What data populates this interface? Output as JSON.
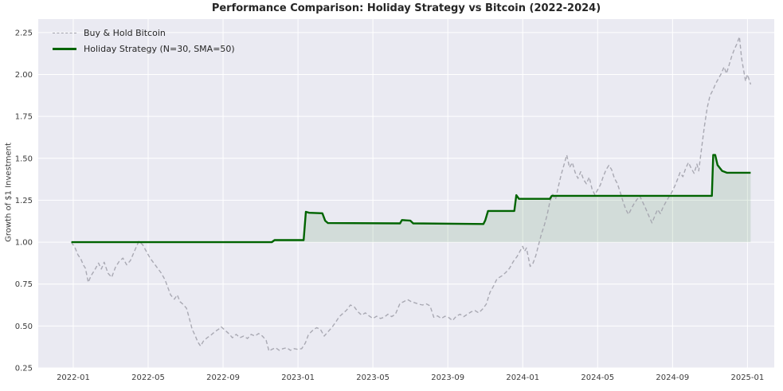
{
  "title": "Performance Comparison: Holiday Strategy vs Bitcoin (2022-2024)",
  "ylabel": "Growth of $1 Investment",
  "legend": {
    "items": [
      {
        "label": "Buy & Hold Bitcoin",
        "style": "dashed",
        "color": "#a2a2ac"
      },
      {
        "label": "Holiday Strategy (N=30, SMA=50)",
        "style": "solid",
        "color": "#006400"
      }
    ]
  },
  "chart_data": {
    "type": "line",
    "title": "Performance Comparison: Holiday Strategy vs Bitcoin (2022-2024)",
    "xlabel": "",
    "ylabel": "Growth of $1 Investment",
    "x_unit": "months since 2022-01",
    "xlim": [
      -1.87,
      37.43
    ],
    "ylim": [
      0.25,
      2.33
    ],
    "grid": true,
    "legend_position": "upper left",
    "colors": {
      "figure_bg": "#ffffff",
      "plot_bg": "#eaeaf2",
      "grid": "#ffffff"
    },
    "xticks": [
      {
        "x": 0,
        "label": "2022-01"
      },
      {
        "x": 4,
        "label": "2022-05"
      },
      {
        "x": 8,
        "label": "2022-09"
      },
      {
        "x": 12,
        "label": "2023-01"
      },
      {
        "x": 16,
        "label": "2023-05"
      },
      {
        "x": 20,
        "label": "2023-09"
      },
      {
        "x": 24,
        "label": "2024-01"
      },
      {
        "x": 28,
        "label": "2024-05"
      },
      {
        "x": 32,
        "label": "2024-09"
      },
      {
        "x": 36,
        "label": "2025-01"
      }
    ],
    "yticks": [
      {
        "value": 0.25,
        "label": "0.25"
      },
      {
        "value": 0.5,
        "label": "0.50"
      },
      {
        "value": 0.75,
        "label": "0.75"
      },
      {
        "value": 1.0,
        "label": "1.00"
      },
      {
        "value": 1.25,
        "label": "1.25"
      },
      {
        "value": 1.5,
        "label": "1.50"
      },
      {
        "value": 1.75,
        "label": "1.75"
      },
      {
        "value": 2.0,
        "label": "2.00"
      },
      {
        "value": 2.25,
        "label": "2.25"
      }
    ],
    "series": [
      {
        "name": "Buy & Hold Bitcoin",
        "color": "#a2a2ac",
        "line_style": "dashed",
        "line_width": 1.4,
        "opacity": 0.9,
        "points": [
          [
            -0.1,
            1.0
          ],
          [
            0.1,
            0.965
          ],
          [
            0.25,
            0.925
          ],
          [
            0.4,
            0.9
          ],
          [
            0.55,
            0.862
          ],
          [
            0.65,
            0.845
          ],
          [
            0.8,
            0.76
          ],
          [
            0.95,
            0.8
          ],
          [
            1.15,
            0.835
          ],
          [
            1.35,
            0.875
          ],
          [
            1.5,
            0.84
          ],
          [
            1.65,
            0.88
          ],
          [
            1.85,
            0.815
          ],
          [
            2.05,
            0.79
          ],
          [
            2.25,
            0.85
          ],
          [
            2.45,
            0.885
          ],
          [
            2.65,
            0.905
          ],
          [
            2.85,
            0.865
          ],
          [
            3.05,
            0.89
          ],
          [
            3.3,
            0.955
          ],
          [
            3.5,
            1.005
          ],
          [
            3.7,
            0.985
          ],
          [
            3.9,
            0.945
          ],
          [
            4.1,
            0.905
          ],
          [
            4.3,
            0.875
          ],
          [
            4.5,
            0.845
          ],
          [
            4.7,
            0.815
          ],
          [
            4.9,
            0.775
          ],
          [
            5.05,
            0.73
          ],
          [
            5.2,
            0.685
          ],
          [
            5.4,
            0.66
          ],
          [
            5.55,
            0.685
          ],
          [
            5.7,
            0.645
          ],
          [
            5.9,
            0.625
          ],
          [
            6.05,
            0.605
          ],
          [
            6.2,
            0.545
          ],
          [
            6.35,
            0.48
          ],
          [
            6.5,
            0.445
          ],
          [
            6.65,
            0.405
          ],
          [
            6.8,
            0.38
          ],
          [
            6.95,
            0.41
          ],
          [
            7.15,
            0.43
          ],
          [
            7.35,
            0.445
          ],
          [
            7.55,
            0.465
          ],
          [
            7.75,
            0.48
          ],
          [
            7.9,
            0.495
          ],
          [
            8.1,
            0.475
          ],
          [
            8.3,
            0.455
          ],
          [
            8.5,
            0.43
          ],
          [
            8.7,
            0.45
          ],
          [
            8.9,
            0.43
          ],
          [
            9.1,
            0.44
          ],
          [
            9.3,
            0.425
          ],
          [
            9.5,
            0.45
          ],
          [
            9.7,
            0.44
          ],
          [
            9.9,
            0.455
          ],
          [
            10.1,
            0.44
          ],
          [
            10.3,
            0.415
          ],
          [
            10.45,
            0.35
          ],
          [
            10.6,
            0.36
          ],
          [
            10.8,
            0.37
          ],
          [
            11,
            0.355
          ],
          [
            11.2,
            0.365
          ],
          [
            11.4,
            0.37
          ],
          [
            11.6,
            0.355
          ],
          [
            11.8,
            0.365
          ],
          [
            12,
            0.36
          ],
          [
            12.2,
            0.365
          ],
          [
            12.4,
            0.4
          ],
          [
            12.55,
            0.445
          ],
          [
            12.7,
            0.465
          ],
          [
            12.85,
            0.48
          ],
          [
            13,
            0.49
          ],
          [
            13.2,
            0.48
          ],
          [
            13.4,
            0.44
          ],
          [
            13.6,
            0.465
          ],
          [
            13.8,
            0.49
          ],
          [
            14,
            0.52
          ],
          [
            14.2,
            0.555
          ],
          [
            14.4,
            0.575
          ],
          [
            14.6,
            0.595
          ],
          [
            14.8,
            0.625
          ],
          [
            15,
            0.615
          ],
          [
            15.2,
            0.585
          ],
          [
            15.4,
            0.565
          ],
          [
            15.6,
            0.578
          ],
          [
            15.8,
            0.56
          ],
          [
            16,
            0.545
          ],
          [
            16.2,
            0.558
          ],
          [
            16.4,
            0.545
          ],
          [
            16.6,
            0.552
          ],
          [
            16.8,
            0.57
          ],
          [
            17,
            0.556
          ],
          [
            17.2,
            0.57
          ],
          [
            17.45,
            0.635
          ],
          [
            17.65,
            0.645
          ],
          [
            17.85,
            0.658
          ],
          [
            18.05,
            0.645
          ],
          [
            18.25,
            0.638
          ],
          [
            18.45,
            0.63
          ],
          [
            18.65,
            0.625
          ],
          [
            18.85,
            0.632
          ],
          [
            19.05,
            0.62
          ],
          [
            19.25,
            0.552
          ],
          [
            19.45,
            0.56
          ],
          [
            19.65,
            0.545
          ],
          [
            19.85,
            0.558
          ],
          [
            20.05,
            0.55
          ],
          [
            20.25,
            0.532
          ],
          [
            20.45,
            0.558
          ],
          [
            20.65,
            0.57
          ],
          [
            20.85,
            0.556
          ],
          [
            21.05,
            0.57
          ],
          [
            21.25,
            0.585
          ],
          [
            21.45,
            0.592
          ],
          [
            21.65,
            0.578
          ],
          [
            21.85,
            0.6
          ],
          [
            22.05,
            0.63
          ],
          [
            22.25,
            0.7
          ],
          [
            22.45,
            0.74
          ],
          [
            22.6,
            0.775
          ],
          [
            22.75,
            0.79
          ],
          [
            22.9,
            0.8
          ],
          [
            23.1,
            0.82
          ],
          [
            23.3,
            0.845
          ],
          [
            23.5,
            0.885
          ],
          [
            23.7,
            0.915
          ],
          [
            23.85,
            0.945
          ],
          [
            24,
            0.975
          ],
          [
            24.1,
            0.945
          ],
          [
            24.2,
            0.965
          ],
          [
            24.4,
            0.855
          ],
          [
            24.55,
            0.875
          ],
          [
            24.7,
            0.92
          ],
          [
            24.85,
            0.985
          ],
          [
            25,
            1.05
          ],
          [
            25.15,
            1.1
          ],
          [
            25.3,
            1.16
          ],
          [
            25.45,
            1.24
          ],
          [
            25.6,
            1.285
          ],
          [
            25.75,
            1.255
          ],
          [
            25.9,
            1.33
          ],
          [
            26.05,
            1.4
          ],
          [
            26.2,
            1.46
          ],
          [
            26.35,
            1.52
          ],
          [
            26.5,
            1.445
          ],
          [
            26.65,
            1.475
          ],
          [
            26.8,
            1.415
          ],
          [
            26.95,
            1.38
          ],
          [
            27.1,
            1.42
          ],
          [
            27.25,
            1.372
          ],
          [
            27.4,
            1.348
          ],
          [
            27.55,
            1.388
          ],
          [
            27.7,
            1.318
          ],
          [
            27.85,
            1.282
          ],
          [
            28,
            1.312
          ],
          [
            28.15,
            1.342
          ],
          [
            28.3,
            1.39
          ],
          [
            28.45,
            1.432
          ],
          [
            28.6,
            1.458
          ],
          [
            28.75,
            1.432
          ],
          [
            28.9,
            1.38
          ],
          [
            29.05,
            1.35
          ],
          [
            29.2,
            1.3
          ],
          [
            29.35,
            1.245
          ],
          [
            29.5,
            1.195
          ],
          [
            29.65,
            1.165
          ],
          [
            29.8,
            1.2
          ],
          [
            29.95,
            1.23
          ],
          [
            30.1,
            1.255
          ],
          [
            30.25,
            1.275
          ],
          [
            30.4,
            1.24
          ],
          [
            30.55,
            1.205
          ],
          [
            30.7,
            1.165
          ],
          [
            30.9,
            1.115
          ],
          [
            31.05,
            1.155
          ],
          [
            31.2,
            1.195
          ],
          [
            31.35,
            1.17
          ],
          [
            31.5,
            1.21
          ],
          [
            31.65,
            1.24
          ],
          [
            31.8,
            1.268
          ],
          [
            31.95,
            1.295
          ],
          [
            32.1,
            1.33
          ],
          [
            32.25,
            1.37
          ],
          [
            32.4,
            1.415
          ],
          [
            32.55,
            1.39
          ],
          [
            32.7,
            1.44
          ],
          [
            32.85,
            1.475
          ],
          [
            33,
            1.44
          ],
          [
            33.15,
            1.41
          ],
          [
            33.3,
            1.465
          ],
          [
            33.4,
            1.425
          ],
          [
            33.55,
            1.56
          ],
          [
            33.7,
            1.69
          ],
          [
            33.85,
            1.8
          ],
          [
            34,
            1.875
          ],
          [
            34.15,
            1.905
          ],
          [
            34.3,
            1.945
          ],
          [
            34.45,
            1.975
          ],
          [
            34.6,
            2.005
          ],
          [
            34.75,
            2.045
          ],
          [
            34.88,
            2.005
          ],
          [
            35,
            2.05
          ],
          [
            35.15,
            2.105
          ],
          [
            35.3,
            2.15
          ],
          [
            35.45,
            2.185
          ],
          [
            35.57,
            2.225
          ],
          [
            35.68,
            2.1
          ],
          [
            35.78,
            2.035
          ],
          [
            35.9,
            1.96
          ],
          [
            36,
            2.0
          ],
          [
            36.17,
            1.94
          ]
        ]
      },
      {
        "name": "Holiday Strategy (N=30, SMA=50)",
        "color": "#006400",
        "line_style": "solid",
        "line_width": 2.4,
        "opacity": 1,
        "fill_to": 1.0,
        "fill_color": "rgba(0,100,0,0.10)",
        "points": [
          [
            -0.1,
            1.0
          ],
          [
            10.6,
            1.0
          ],
          [
            10.75,
            1.012
          ],
          [
            12.3,
            1.012
          ],
          [
            12.42,
            1.181
          ],
          [
            12.6,
            1.175
          ],
          [
            13.3,
            1.172
          ],
          [
            13.45,
            1.128
          ],
          [
            13.6,
            1.114
          ],
          [
            17.45,
            1.112
          ],
          [
            17.55,
            1.132
          ],
          [
            18.0,
            1.128
          ],
          [
            18.15,
            1.112
          ],
          [
            21.9,
            1.108
          ],
          [
            22.0,
            1.13
          ],
          [
            22.15,
            1.186
          ],
          [
            23.55,
            1.186
          ],
          [
            23.66,
            1.28
          ],
          [
            23.8,
            1.258
          ],
          [
            25.45,
            1.258
          ],
          [
            25.55,
            1.276
          ],
          [
            34.1,
            1.276
          ],
          [
            34.17,
            1.52
          ],
          [
            34.28,
            1.52
          ],
          [
            34.4,
            1.46
          ],
          [
            34.65,
            1.425
          ],
          [
            34.9,
            1.414
          ],
          [
            36.17,
            1.414
          ]
        ]
      }
    ]
  }
}
